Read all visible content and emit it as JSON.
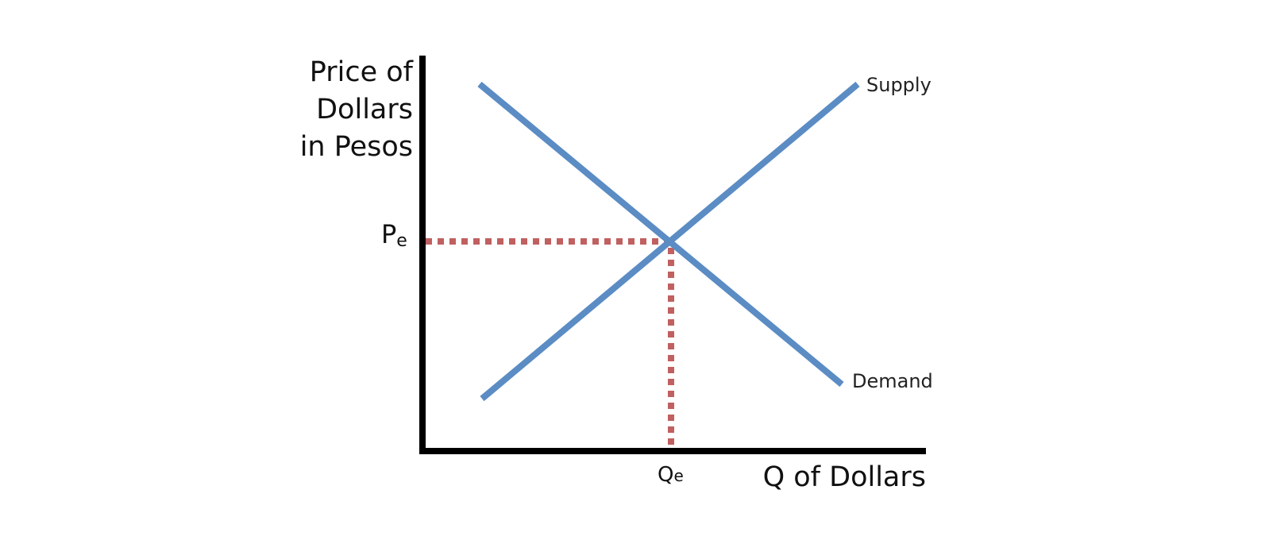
{
  "diagram": {
    "type": "supply-demand",
    "y_axis_title_lines": [
      "Price of",
      "Dollars",
      "in Pesos"
    ],
    "x_axis_title": "Q of Dollars",
    "equilibrium_price_label": {
      "main": "P",
      "sub": "e"
    },
    "equilibrium_quantity_label": {
      "main": "Q",
      "sub": "e"
    },
    "supply_label": "Supply",
    "demand_label": "Demand",
    "watermark": ""
  },
  "colors": {
    "curves": "#5b8cc4",
    "guides": "#c06060",
    "axes": "#000000"
  }
}
